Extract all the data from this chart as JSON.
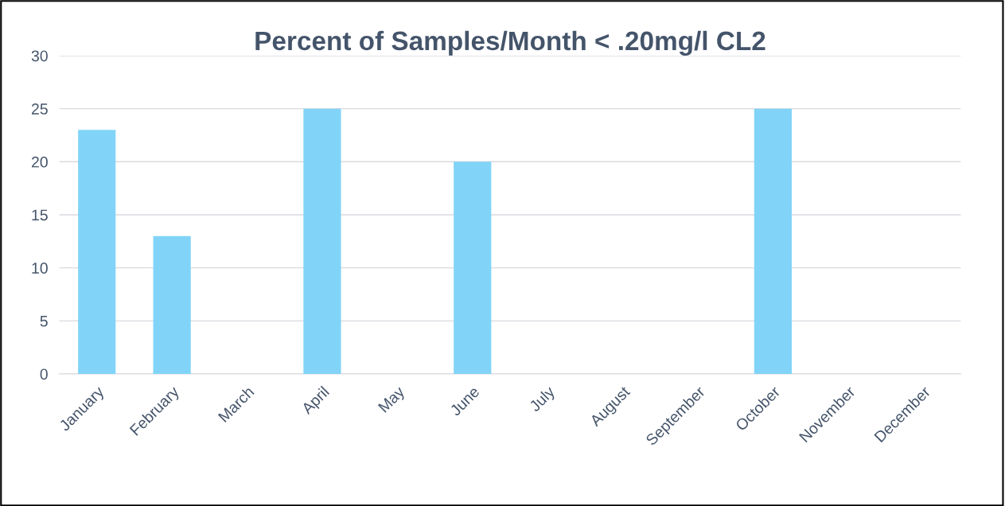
{
  "chart_data": {
    "type": "bar",
    "title": "Percent of Samples/Month < .20mg/l CL2",
    "categories": [
      "January",
      "February",
      "March",
      "April",
      "May",
      "June",
      "July",
      "August",
      "September",
      "October",
      "November",
      "December"
    ],
    "values": [
      23,
      13,
      0,
      25,
      0,
      20,
      0,
      0,
      0,
      25,
      0,
      0
    ],
    "color": "#81d4f7",
    "ylim": [
      0,
      30
    ],
    "yticks": [
      0,
      5,
      10,
      15,
      20,
      25,
      30
    ],
    "grid": "y"
  }
}
